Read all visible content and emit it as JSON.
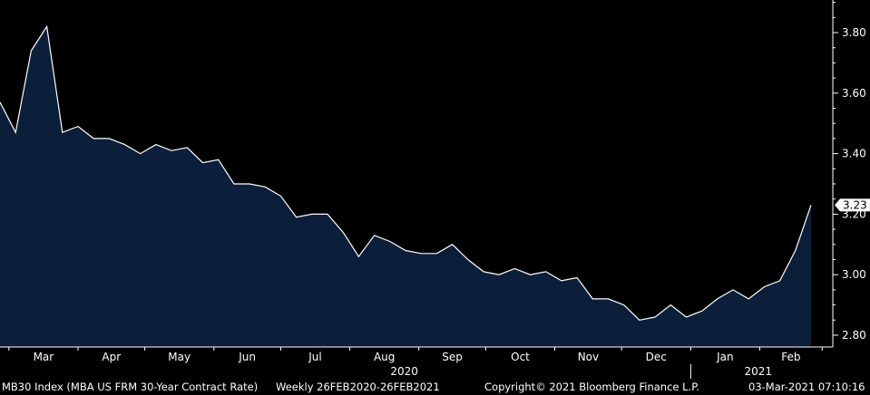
{
  "chart_data": {
    "type": "area",
    "title": "",
    "xlabel": "",
    "ylabel": "",
    "ylim": [
      2.75,
      3.95
    ],
    "yticks": [
      2.8,
      3.0,
      3.2,
      3.4,
      3.6,
      3.8
    ],
    "ytick_labels": [
      "2.80",
      "3.00",
      "3.20",
      "3.40",
      "3.60",
      "3.80"
    ],
    "x_month_labels": [
      "Mar",
      "Apr",
      "May",
      "Jun",
      "Jul",
      "Aug",
      "Sep",
      "Oct",
      "Nov",
      "Dec",
      "Jan",
      "Feb"
    ],
    "x_year_labels": [
      "2020",
      "2021"
    ],
    "last_value_label": "3.23",
    "fill_color": "#0b1f3a",
    "line_color": "#ffffff",
    "background": "#000000",
    "grid": false,
    "series": [
      {
        "frequency": "weekly",
        "x": [
          "2020-02-26",
          "2020-03-04",
          "2020-03-11",
          "2020-03-18",
          "2020-03-25",
          "2020-04-01",
          "2020-04-08",
          "2020-04-15",
          "2020-04-22",
          "2020-04-29",
          "2020-05-06",
          "2020-05-13",
          "2020-05-20",
          "2020-05-27",
          "2020-06-03",
          "2020-06-10",
          "2020-06-17",
          "2020-06-24",
          "2020-07-01",
          "2020-07-08",
          "2020-07-15",
          "2020-07-22",
          "2020-07-29",
          "2020-08-05",
          "2020-08-12",
          "2020-08-19",
          "2020-08-26",
          "2020-09-02",
          "2020-09-09",
          "2020-09-16",
          "2020-09-23",
          "2020-09-30",
          "2020-10-07",
          "2020-10-14",
          "2020-10-21",
          "2020-10-28",
          "2020-11-04",
          "2020-11-11",
          "2020-11-18",
          "2020-11-25",
          "2020-12-02",
          "2020-12-09",
          "2020-12-16",
          "2020-12-23",
          "2020-12-30",
          "2021-01-06",
          "2021-01-13",
          "2021-01-20",
          "2021-01-27",
          "2021-02-03",
          "2021-02-10",
          "2021-02-17",
          "2021-02-24"
        ],
        "values": [
          3.57,
          3.47,
          3.74,
          3.82,
          3.47,
          3.49,
          3.45,
          3.45,
          3.43,
          3.4,
          3.43,
          3.41,
          3.42,
          3.37,
          3.38,
          3.3,
          3.3,
          3.29,
          3.26,
          3.19,
          3.2,
          3.2,
          3.14,
          3.06,
          3.13,
          3.11,
          3.08,
          3.07,
          3.07,
          3.1,
          3.05,
          3.01,
          3.0,
          3.02,
          3.0,
          3.01,
          2.98,
          2.99,
          2.92,
          2.92,
          2.9,
          2.85,
          2.86,
          2.9,
          2.86,
          2.88,
          2.92,
          2.95,
          2.92,
          2.96,
          2.98,
          3.08,
          3.23
        ]
      }
    ]
  },
  "footer": {
    "ticker": "MB30 Index (MBA US FRM 30-Year Contract Rate)",
    "period": "Weekly 26FEB2020-26FEB2021",
    "copyright": "Copyright© 2021 Bloomberg Finance L.P.",
    "timestamp": "03-Mar-2021 07:10:16"
  }
}
